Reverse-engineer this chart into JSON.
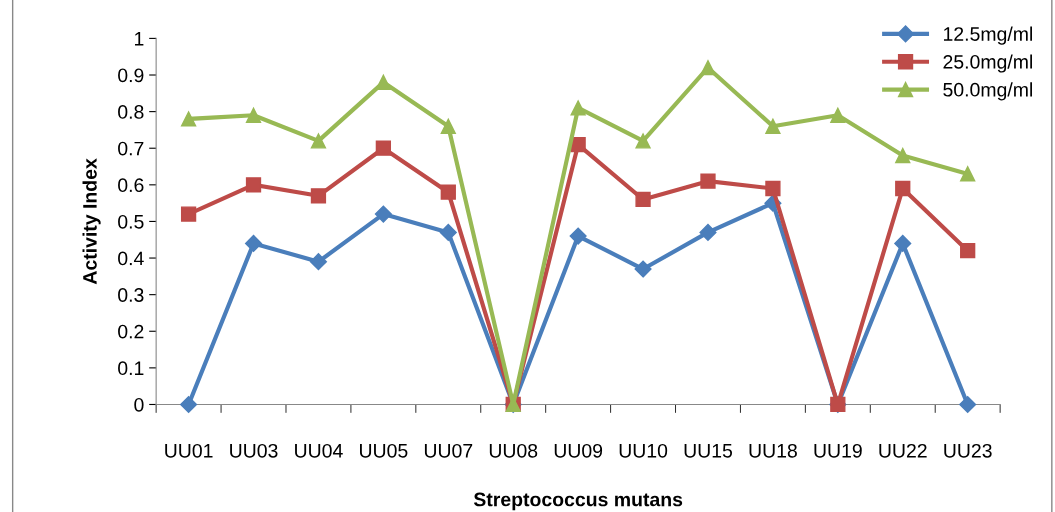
{
  "chart_data": {
    "type": "line",
    "xlabel": "Streptococcus mutans",
    "ylabel": "Activity Index",
    "categories": [
      "UU01",
      "UU03",
      "UU04",
      "UU05",
      "UU07",
      "UU08",
      "UU09",
      "UU10",
      "UU15",
      "UU18",
      "UU19",
      "UU22",
      "UU23"
    ],
    "series": [
      {
        "name": "12.5mg/ml",
        "color": "#4a7ebb",
        "marker": "diamond",
        "values": [
          0,
          0.44,
          0.39,
          0.52,
          0.47,
          0,
          0.46,
          0.37,
          0.47,
          0.55,
          0,
          0.44,
          0
        ]
      },
      {
        "name": "25.0mg/ml",
        "color": "#be4b48",
        "marker": "square",
        "values": [
          0.52,
          0.6,
          0.57,
          0.7,
          0.58,
          0,
          0.71,
          0.56,
          0.61,
          0.59,
          0,
          0.59,
          0.42
        ]
      },
      {
        "name": "50.0mg/ml",
        "color": "#98b954",
        "marker": "triangle",
        "values": [
          0.78,
          0.79,
          0.72,
          0.88,
          0.76,
          0,
          0.81,
          0.72,
          0.92,
          0.76,
          0.79,
          0.68,
          0.63
        ]
      }
    ],
    "ylim": [
      0,
      1
    ],
    "yticks": [
      0,
      0.1,
      0.2,
      0.3,
      0.4,
      0.5,
      0.6,
      0.7,
      0.8,
      0.9,
      1
    ],
    "grid": false,
    "legend": "top right",
    "line_style": "solid"
  }
}
